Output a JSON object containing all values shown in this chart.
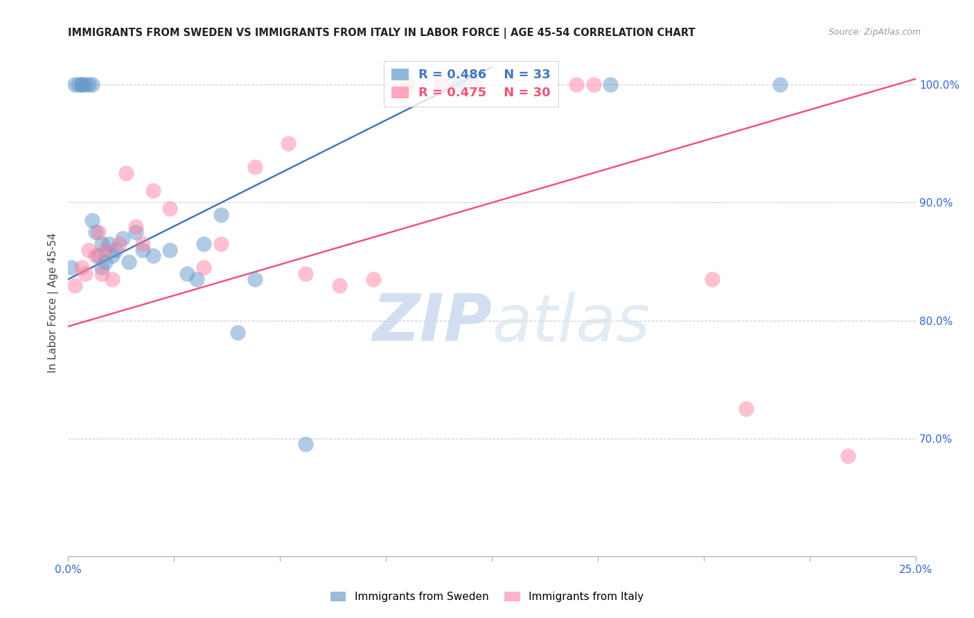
{
  "title": "IMMIGRANTS FROM SWEDEN VS IMMIGRANTS FROM ITALY IN LABOR FORCE | AGE 45-54 CORRELATION CHART",
  "source": "Source: ZipAtlas.com",
  "ylabel": "In Labor Force | Age 45-54",
  "y_ticks": [
    100.0,
    90.0,
    80.0,
    70.0
  ],
  "x_min": 0.0,
  "x_max": 0.25,
  "y_min": 60.0,
  "y_max": 103.0,
  "legend_r_sweden": "R = 0.486",
  "legend_n_sweden": "N = 33",
  "legend_r_italy": "R = 0.475",
  "legend_n_italy": "N = 30",
  "sweden_color": "#6699cc",
  "italy_color": "#ff7799",
  "sweden_line_color": "#4477bb",
  "italy_line_color": "#ee5577",
  "watermark_zip": "ZIP",
  "watermark_atlas": "atlas",
  "sweden_points_x": [
    0.001,
    0.002,
    0.003,
    0.004,
    0.004,
    0.005,
    0.006,
    0.007,
    0.007,
    0.008,
    0.009,
    0.01,
    0.01,
    0.011,
    0.012,
    0.013,
    0.014,
    0.016,
    0.018,
    0.02,
    0.022,
    0.025,
    0.03,
    0.035,
    0.038,
    0.04,
    0.045,
    0.05,
    0.055,
    0.07,
    0.115,
    0.16,
    0.21
  ],
  "sweden_points_y": [
    84.5,
    100.0,
    100.0,
    100.0,
    100.0,
    100.0,
    100.0,
    100.0,
    88.5,
    87.5,
    85.5,
    86.5,
    84.5,
    85.0,
    86.5,
    85.5,
    86.0,
    87.0,
    85.0,
    87.5,
    86.0,
    85.5,
    86.0,
    84.0,
    83.5,
    86.5,
    89.0,
    79.0,
    83.5,
    69.5,
    100.0,
    100.0,
    100.0
  ],
  "italy_points_x": [
    0.002,
    0.004,
    0.005,
    0.006,
    0.008,
    0.009,
    0.01,
    0.011,
    0.013,
    0.015,
    0.017,
    0.02,
    0.022,
    0.025,
    0.03,
    0.04,
    0.045,
    0.055,
    0.065,
    0.07,
    0.08,
    0.09,
    0.1,
    0.11,
    0.12,
    0.15,
    0.155,
    0.19,
    0.2,
    0.23
  ],
  "italy_points_y": [
    83.0,
    84.5,
    84.0,
    86.0,
    85.5,
    87.5,
    84.0,
    86.0,
    83.5,
    86.5,
    92.5,
    88.0,
    86.5,
    91.0,
    89.5,
    84.5,
    86.5,
    93.0,
    95.0,
    84.0,
    83.0,
    83.5,
    100.0,
    100.0,
    100.0,
    100.0,
    100.0,
    83.5,
    72.5,
    68.5
  ],
  "sweden_line_x": [
    0.0,
    0.125
  ],
  "sweden_line_y": [
    83.5,
    101.5
  ],
  "italy_line_x": [
    0.0,
    0.25
  ],
  "italy_line_y": [
    79.5,
    100.5
  ],
  "x_tick_positions": [
    0.0,
    0.03125,
    0.0625,
    0.09375,
    0.125,
    0.15625,
    0.1875,
    0.21875,
    0.25
  ],
  "bottom_legend_labels": [
    "Immigrants from Sweden",
    "Immigrants from Italy"
  ]
}
